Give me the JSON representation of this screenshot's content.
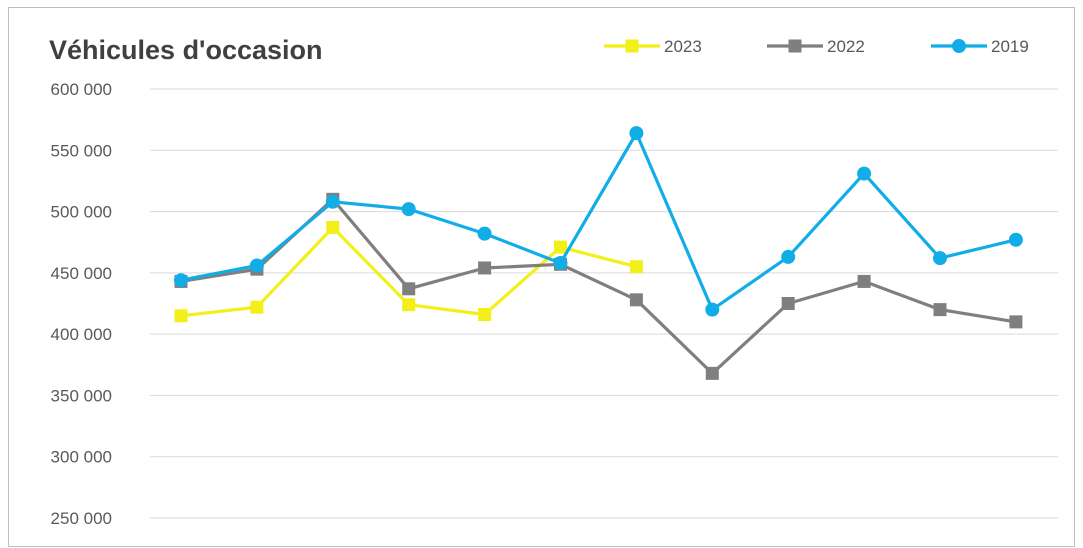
{
  "chart_data": {
    "type": "line",
    "title": "Véhicules d'occasion",
    "x": [
      1,
      2,
      3,
      4,
      5,
      6,
      7,
      8,
      9,
      10,
      11,
      12
    ],
    "ylim": [
      250000,
      600000
    ],
    "yticks": [
      250000,
      300000,
      350000,
      400000,
      450000,
      500000,
      550000,
      600000
    ],
    "ytick_labels": [
      "250 000",
      "300 000",
      "350 000",
      "400 000",
      "450 000",
      "500 000",
      "550 000",
      "600 000"
    ],
    "grid": "horizontal",
    "legend": "top-right",
    "series": [
      {
        "name": "2023",
        "color": "#f2ef19",
        "marker": "square",
        "values": [
          415000,
          422000,
          487000,
          424000,
          416000,
          471000,
          455000,
          null,
          null,
          null,
          null,
          null
        ]
      },
      {
        "name": "2022",
        "color": "#7f7f7f",
        "marker": "square",
        "values": [
          443000,
          453000,
          510000,
          437000,
          454000,
          457000,
          428000,
          368000,
          425000,
          443000,
          420000,
          410000
        ]
      },
      {
        "name": "2019",
        "color": "#11ade7",
        "marker": "circle",
        "values": [
          444000,
          456000,
          508000,
          502000,
          482000,
          458000,
          564000,
          420000,
          463000,
          531000,
          462000,
          477000
        ]
      }
    ]
  }
}
